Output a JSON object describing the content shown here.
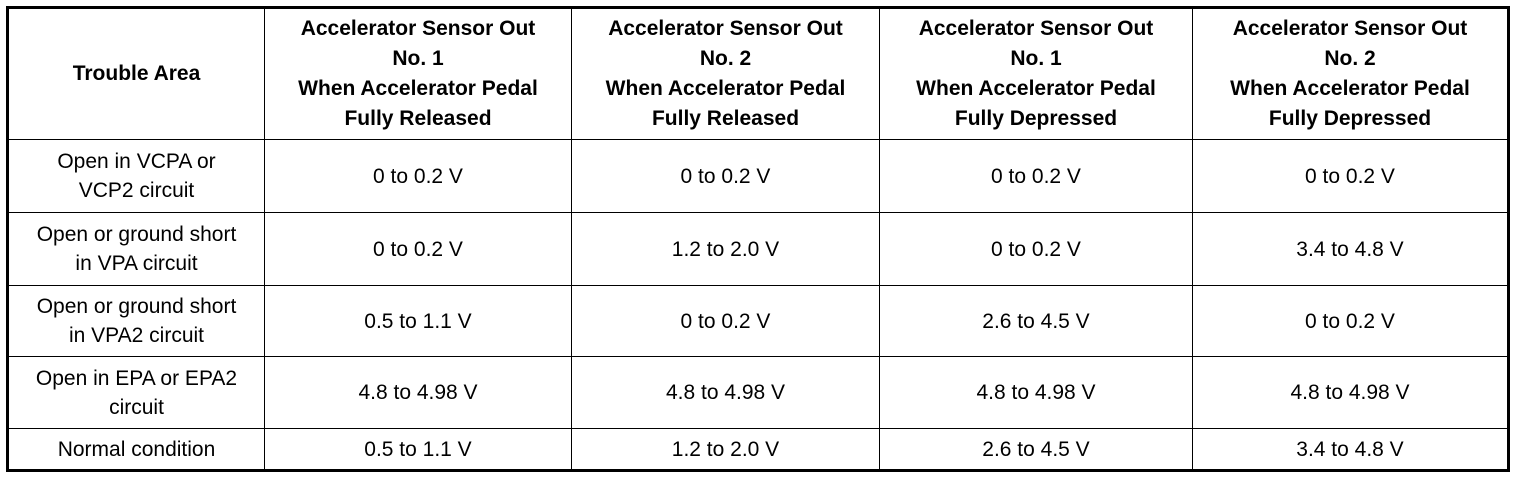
{
  "table": {
    "header": [
      [
        "Trouble Area"
      ],
      [
        "Accelerator Sensor Out",
        "No. 1",
        "When Accelerator Pedal",
        "Fully Released"
      ],
      [
        "Accelerator Sensor Out",
        "No. 2",
        "When Accelerator Pedal",
        "Fully Released"
      ],
      [
        "Accelerator Sensor Out",
        "No. 1",
        "When Accelerator Pedal",
        "Fully Depressed"
      ],
      [
        "Accelerator Sensor Out",
        "No. 2",
        "When Accelerator Pedal",
        "Fully Depressed"
      ]
    ],
    "rows": [
      [
        [
          "Open in VCPA or",
          "VCP2 circuit"
        ],
        [
          "0 to 0.2 V"
        ],
        [
          "0 to 0.2 V"
        ],
        [
          "0 to 0.2 V"
        ],
        [
          "0 to 0.2 V"
        ]
      ],
      [
        [
          "Open or ground short",
          "in VPA circuit"
        ],
        [
          "0 to 0.2 V"
        ],
        [
          "1.2 to 2.0 V"
        ],
        [
          "0 to 0.2 V"
        ],
        [
          "3.4 to 4.8 V"
        ]
      ],
      [
        [
          "Open or ground short",
          "in VPA2 circuit"
        ],
        [
          "0.5 to 1.1 V"
        ],
        [
          "0 to 0.2 V"
        ],
        [
          "2.6 to 4.5 V"
        ],
        [
          "0 to 0.2 V"
        ]
      ],
      [
        [
          "Open in EPA or EPA2",
          "circuit"
        ],
        [
          "4.8 to 4.98 V"
        ],
        [
          "4.8 to 4.98 V"
        ],
        [
          "4.8 to 4.98 V"
        ],
        [
          "4.8 to 4.98 V"
        ]
      ],
      [
        [
          "Normal condition"
        ],
        [
          "0.5 to 1.1 V"
        ],
        [
          "1.2 to 2.0 V"
        ],
        [
          "2.6 to 4.5 V"
        ],
        [
          "3.4 to 4.8 V"
        ]
      ]
    ]
  }
}
